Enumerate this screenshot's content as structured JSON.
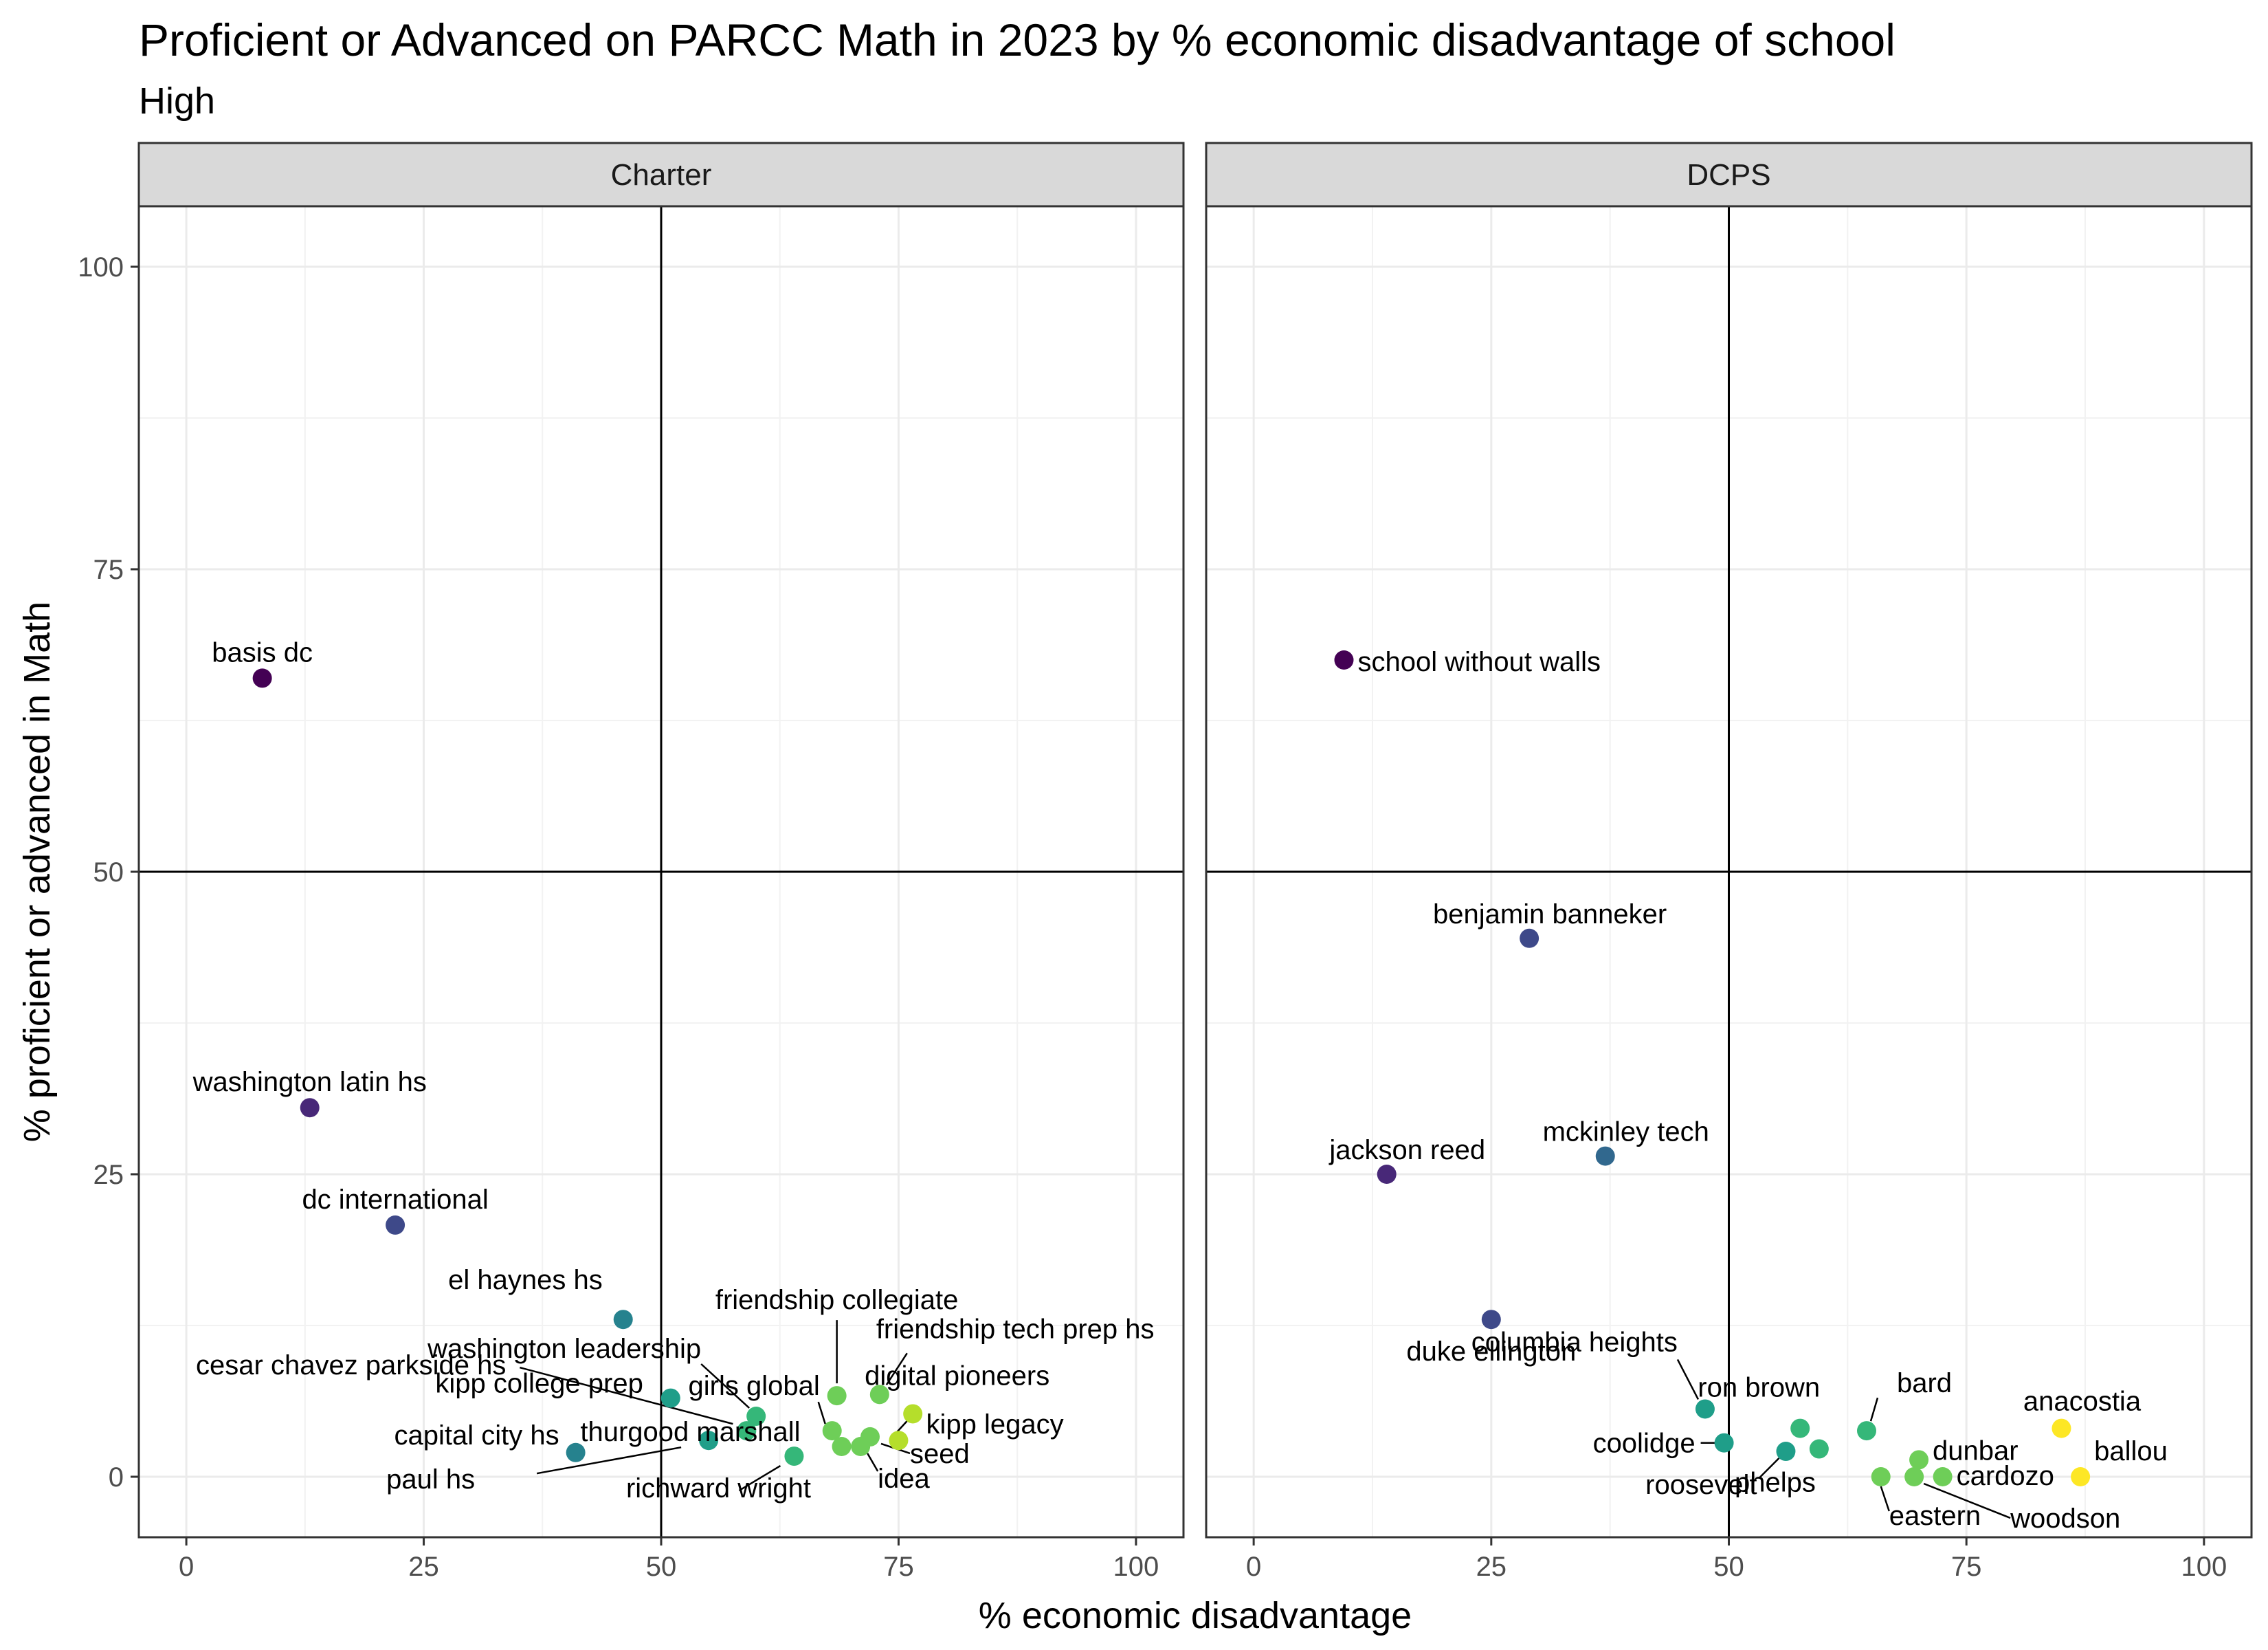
{
  "chart_data": {
    "type": "scatter",
    "title": "Proficient or Advanced on PARCC Math in 2023 by % economic disadvantage of school",
    "subtitle": "High",
    "xlabel": "% economic disadvantage",
    "ylabel": "% proficient or advanced in Math",
    "xlim": [
      -5,
      105
    ],
    "ylim": [
      -5,
      105
    ],
    "x_ticks": [
      "0",
      "25",
      "50",
      "75",
      "100"
    ],
    "y_ticks": [
      "0",
      "25",
      "50",
      "75",
      "100"
    ],
    "reference_lines": {
      "x": 50,
      "y": 50
    },
    "grid": true,
    "color_scale": "viridis (by % economic disadvantage)",
    "panels": [
      {
        "name": "Charter",
        "points": [
          {
            "label": "basis dc",
            "x": 8,
            "y": 66
          },
          {
            "label": "washington latin hs",
            "x": 13,
            "y": 30.5
          },
          {
            "label": "dc international",
            "x": 22,
            "y": 20.8
          },
          {
            "label": "el haynes hs",
            "x": 46,
            "y": 13
          },
          {
            "label": "cesar chavez parkside hs",
            "x": 59,
            "y": 3.8
          },
          {
            "label": "washington leadership",
            "x": 60,
            "y": 5
          },
          {
            "label": "kipp college prep",
            "x": 51,
            "y": 6.5
          },
          {
            "label": "capital city hs",
            "x": 41,
            "y": 2
          },
          {
            "label": "paul hs",
            "x": 55,
            "y": 3
          },
          {
            "label": "richward wright",
            "x": 64,
            "y": 1.7
          },
          {
            "label": "girls global",
            "x": 68,
            "y": 3.8
          },
          {
            "label": "thurgood marshall",
            "x": 69,
            "y": 2.5
          },
          {
            "label": "friendship collegiate",
            "x": 68.5,
            "y": 6.7
          },
          {
            "label": "idea",
            "x": 71,
            "y": 2.5
          },
          {
            "label": "friendship tech prep hs",
            "x": 73,
            "y": 6.8
          },
          {
            "label": "digital pioneers",
            "x": 76.5,
            "y": 5.2
          },
          {
            "label": "kipp legacy",
            "x": 75,
            "y": 3
          },
          {
            "label": "seed",
            "x": 72,
            "y": 3.3
          }
        ]
      },
      {
        "name": "DCPS",
        "points": [
          {
            "label": "school without walls",
            "x": 9.5,
            "y": 67.5
          },
          {
            "label": "benjamin banneker",
            "x": 29,
            "y": 44.5
          },
          {
            "label": "mckinley tech",
            "x": 37,
            "y": 26.5
          },
          {
            "label": "jackson reed",
            "x": 14,
            "y": 25
          },
          {
            "label": "duke ellington",
            "x": 25,
            "y": 13
          },
          {
            "label": "columbia heights",
            "x": 47.5,
            "y": 5.6
          },
          {
            "label": "coolidge",
            "x": 49.5,
            "y": 2.8
          },
          {
            "label": "ron brown",
            "x": 57.5,
            "y": 4
          },
          {
            "label": "bard",
            "x": 64.5,
            "y": 3.8
          },
          {
            "label": "roosevelt",
            "x": 56,
            "y": 2.1
          },
          {
            "label": "phelps",
            "x": 59.5,
            "y": 2.3
          },
          {
            "label": "dunbar",
            "x": 70,
            "y": 1.4
          },
          {
            "label": "eastern",
            "x": 66,
            "y": 0
          },
          {
            "label": "woodson",
            "x": 69.5,
            "y": 0
          },
          {
            "label": "cardozo",
            "x": 72.5,
            "y": 0
          },
          {
            "label": "anacostia",
            "x": 85,
            "y": 4
          },
          {
            "label": "ballou",
            "x": 87,
            "y": 0
          }
        ]
      }
    ]
  }
}
